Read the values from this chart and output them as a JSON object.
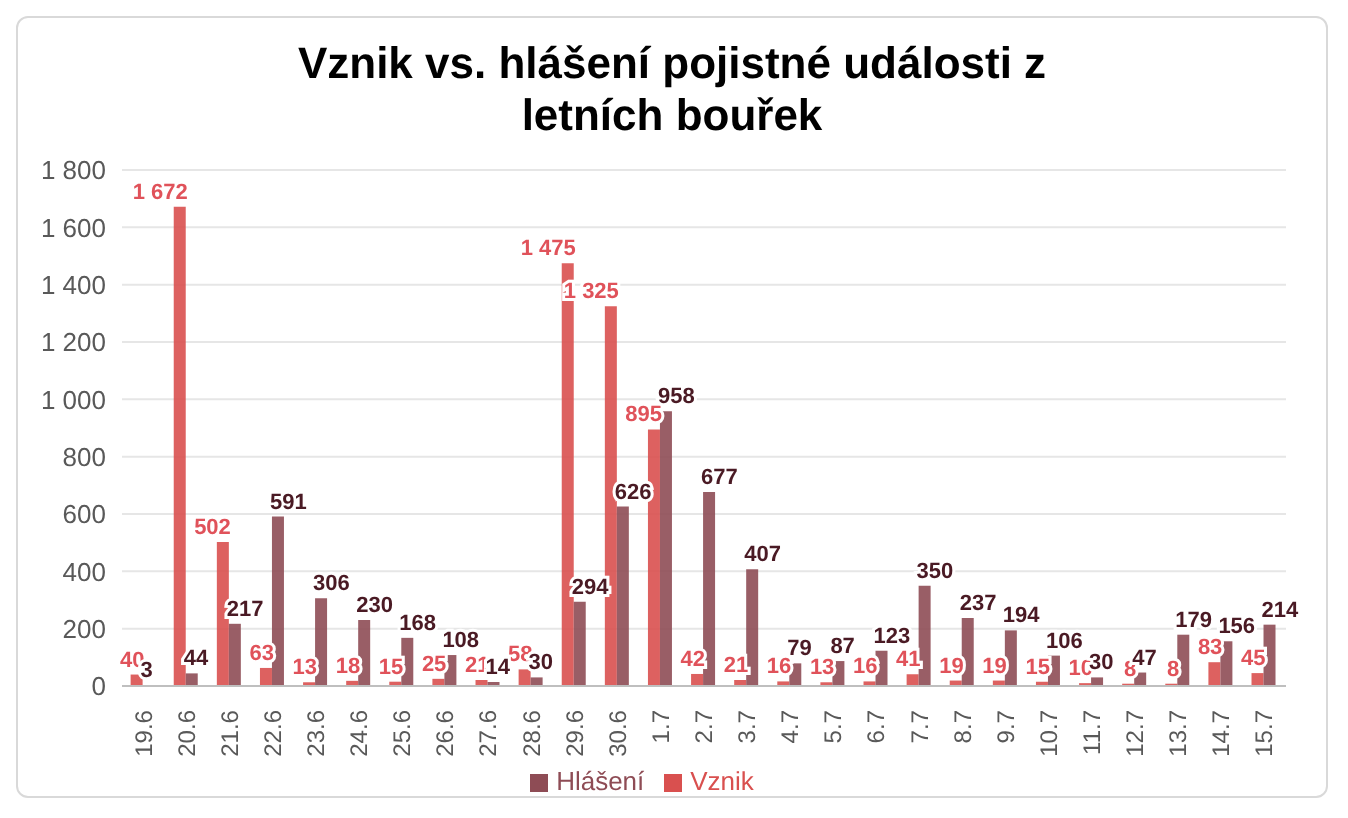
{
  "chart_data": {
    "type": "bar",
    "title": "Vznik vs. hlášení pojistné události z letních bouřek",
    "categories": [
      "19.6",
      "20.6",
      "21.6",
      "22.6",
      "23.6",
      "24.6",
      "25.6",
      "26.6",
      "27.6",
      "28.6",
      "29.6",
      "30.6",
      "1.7",
      "2.7",
      "3.7",
      "4.7",
      "5.7",
      "6.7",
      "7.7",
      "8.7",
      "9.7",
      "10.7",
      "11.7",
      "12.7",
      "13.7",
      "14.7",
      "15.7"
    ],
    "series": [
      {
        "name": "Vznik",
        "color": "#d9504f",
        "values": [
          40,
          1672,
          502,
          63,
          13,
          18,
          15,
          25,
          21,
          58,
          1475,
          1325,
          895,
          42,
          21,
          16,
          13,
          16,
          41,
          19,
          19,
          15,
          10,
          8,
          8,
          83,
          45
        ],
        "value_labels": [
          "40",
          "1 672",
          "502",
          "63",
          "13",
          "18",
          "15",
          "25",
          "21",
          "58",
          "1 475",
          "1 325",
          "895",
          "42",
          "21",
          "16",
          "13",
          "16",
          "41",
          "19",
          "19",
          "15",
          "10",
          "8",
          "8",
          "83",
          "45"
        ]
      },
      {
        "name": "Hlášení",
        "color": "#8e4c55",
        "values": [
          3,
          44,
          217,
          591,
          306,
          230,
          168,
          108,
          14,
          30,
          294,
          626,
          958,
          677,
          407,
          79,
          87,
          123,
          350,
          237,
          194,
          106,
          30,
          47,
          179,
          156,
          214
        ],
        "value_labels": [
          "3",
          "44",
          "217",
          "591",
          "306",
          "230",
          "168",
          "108",
          "14",
          "30",
          "294",
          "626",
          "958",
          "677",
          "407",
          "79",
          "87",
          "123",
          "350",
          "237",
          "194",
          "106",
          "30",
          "47",
          "179",
          "156",
          "214"
        ]
      }
    ],
    "ylim": [
      0,
      1800
    ],
    "yticks": [
      0,
      200,
      400,
      600,
      800,
      {
        "value": 1000,
        "label": "1 000"
      },
      {
        "value": 1200,
        "label": "1 200"
      },
      {
        "value": 1400,
        "label": "1 400"
      },
      {
        "value": 1600,
        "label": "1 600"
      },
      {
        "value": 1800,
        "label": "1 800"
      }
    ],
    "grid": "y",
    "legend": "bottom"
  }
}
